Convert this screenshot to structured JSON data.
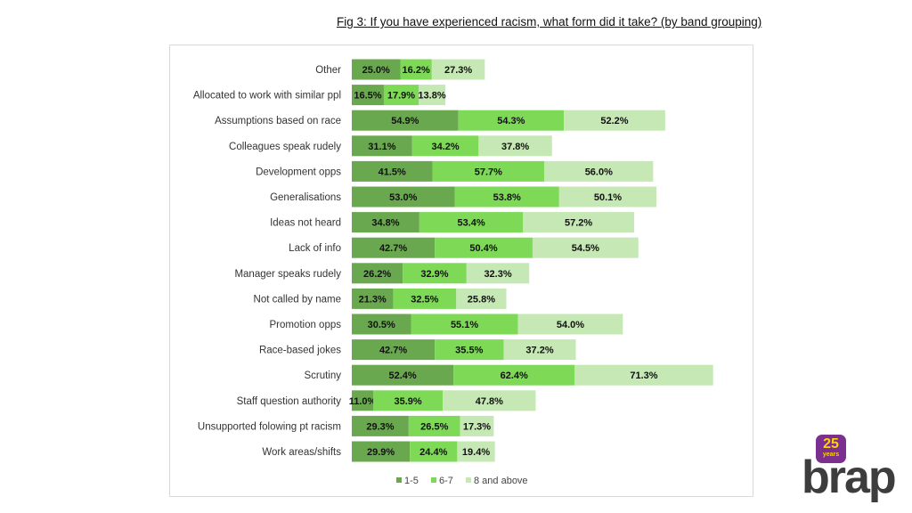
{
  "figure": {
    "title": "Fig 3: If you have experienced racism, what form did it take? (by band grouping)"
  },
  "chart_data": {
    "type": "bar",
    "orientation": "horizontal",
    "stacked": true,
    "categories": [
      "Other",
      "Allocated to work with similar ppl",
      "Assumptions based on race",
      "Colleagues speak rudely",
      "Development opps",
      "Generalisations",
      "Ideas not heard",
      "Lack of info",
      "Manager speaks rudely",
      "Not called by name",
      "Promotion opps",
      "Race-based jokes",
      "Scrutiny",
      "Staff question authority",
      "Unsupported folowing pt racism",
      "Work areas/shifts"
    ],
    "series": [
      {
        "name": "1-5",
        "color": "#6aa84f",
        "values": [
          25.0,
          16.5,
          54.9,
          31.1,
          41.5,
          53.0,
          34.8,
          42.7,
          26.2,
          21.3,
          30.5,
          42.7,
          52.4,
          11.0,
          29.3,
          29.9
        ]
      },
      {
        "name": "6-7",
        "color": "#7ed957",
        "values": [
          16.2,
          17.9,
          54.3,
          34.2,
          57.7,
          53.8,
          53.4,
          50.4,
          32.9,
          32.5,
          55.1,
          35.5,
          62.4,
          35.9,
          26.5,
          24.4
        ]
      },
      {
        "name": "8 and above",
        "color": "#c5e8b4",
        "values": [
          27.3,
          13.8,
          52.2,
          37.8,
          56.0,
          50.1,
          57.2,
          54.5,
          32.3,
          25.8,
          54.0,
          37.2,
          71.3,
          47.8,
          17.3,
          19.4
        ]
      }
    ],
    "value_suffix": "%",
    "legend_position": "bottom",
    "grid": false
  },
  "logo": {
    "badge_number": "25",
    "badge_text": "years",
    "wordmark": "brap",
    "badge_color": "#7b2f8e",
    "badge_text_color": "#ffd200",
    "wordmark_color": "#3d3d3d"
  }
}
